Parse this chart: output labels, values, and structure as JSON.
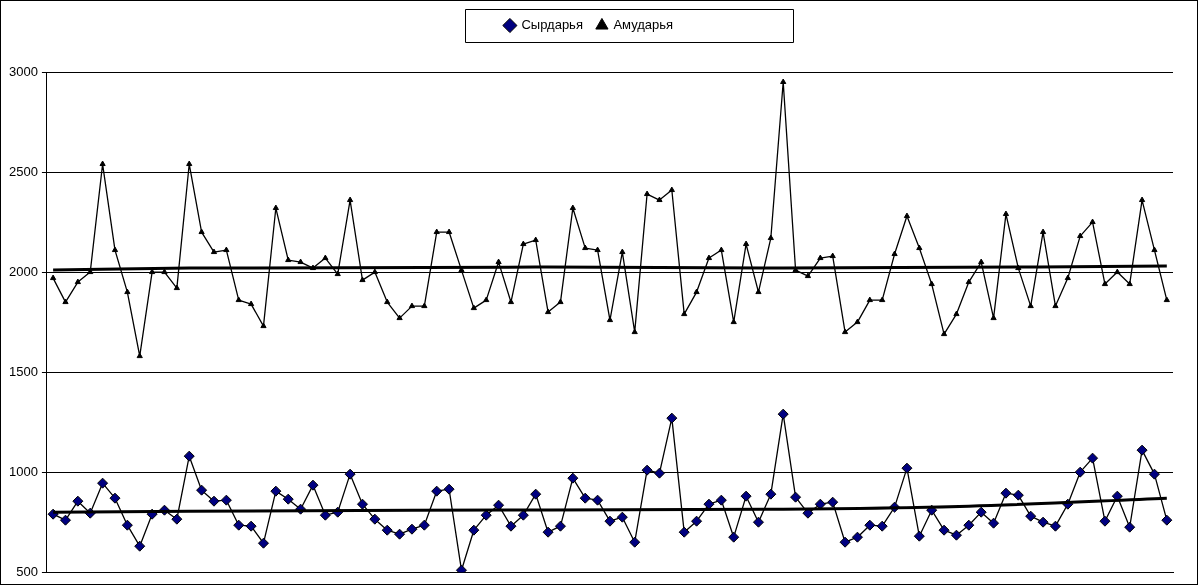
{
  "chart_data": {
    "type": "line",
    "categories": [
      null,
      null,
      null,
      null,
      null,
      null,
      null,
      null,
      null,
      null,
      null,
      null,
      null,
      null,
      null,
      null,
      null,
      null,
      null,
      null,
      null,
      null,
      null,
      null,
      null,
      null,
      null,
      null,
      null,
      null,
      null,
      null,
      null,
      null,
      null,
      null,
      null,
      null,
      null,
      null,
      null,
      null,
      null,
      null,
      null,
      null,
      null,
      null,
      null,
      null,
      null,
      null,
      null,
      null,
      null,
      null,
      null,
      null,
      null,
      null,
      null,
      null,
      null,
      null,
      null,
      null,
      null,
      null,
      null,
      null,
      null,
      null,
      null,
      null,
      null,
      null,
      null,
      null,
      null,
      null,
      null,
      null,
      null,
      null,
      null,
      null,
      null,
      null,
      null,
      null,
      null
    ],
    "ylim": [
      500,
      3000
    ],
    "yticks": [
      500,
      1000,
      1500,
      2000,
      2500,
      3000
    ],
    "grid": "y",
    "legend": "top",
    "tick_labels": "y",
    "line_style": "solid",
    "series": [
      {
        "name": "Сырдарья",
        "color": "#000080",
        "marker": "diamond",
        "values": [
          790,
          760,
          855,
          795,
          945,
          870,
          735,
          630,
          790,
          810,
          765,
          1080,
          910,
          855,
          860,
          735,
          730,
          645,
          905,
          865,
          815,
          935,
          785,
          800,
          990,
          840,
          765,
          710,
          690,
          715,
          735,
          905,
          915,
          510,
          710,
          785,
          835,
          730,
          785,
          890,
          700,
          730,
          970,
          870,
          860,
          755,
          775,
          650,
          1010,
          995,
          1270,
          700,
          755,
          840,
          860,
          675,
          880,
          750,
          890,
          1290,
          875,
          795,
          840,
          850,
          650,
          675,
          735,
          730,
          825,
          1020,
          680,
          810,
          710,
          685,
          735,
          800,
          745,
          895,
          885,
          780,
          750,
          730,
          840,
          1000,
          1070,
          755,
          880,
          725,
          1110,
          990,
          760
        ]
      },
      {
        "name": "Амударья",
        "color": "#000000",
        "marker": "triangle",
        "values": [
          1970,
          1850,
          1950,
          2000,
          2540,
          2110,
          1900,
          1580,
          2000,
          2000,
          1920,
          2540,
          2200,
          2100,
          2110,
          1860,
          1840,
          1730,
          2320,
          2060,
          2050,
          2020,
          2070,
          1990,
          2360,
          1960,
          2000,
          1850,
          1770,
          1830,
          1830,
          2200,
          2200,
          2010,
          1820,
          1860,
          2050,
          1850,
          2140,
          2160,
          1800,
          1850,
          2320,
          2120,
          2110,
          1760,
          2100,
          1700,
          2390,
          2360,
          2410,
          1790,
          1900,
          2070,
          2110,
          1750,
          2140,
          1900,
          2170,
          2950,
          2010,
          1980,
          2070,
          2080,
          1700,
          1750,
          1860,
          1860,
          2090,
          2280,
          2120,
          1940,
          1690,
          1790,
          1950,
          2050,
          1770,
          2290,
          2020,
          1830,
          2200,
          1830,
          1970,
          2180,
          2250,
          1940,
          2000,
          1940,
          2360,
          2110,
          1860
        ]
      },
      {
        "type": "line",
        "color": "#000000",
        "marker": "none",
        "values": [
          800,
          null,
          null,
          null,
          null,
          null,
          null,
          null,
          null,
          null,
          null,
          null,
          null,
          null,
          null,
          null,
          null,
          null,
          null,
          null,
          null,
          null,
          null,
          null,
          null,
          null,
          null,
          null,
          null,
          810,
          null,
          null,
          null,
          null,
          null,
          null,
          null,
          null,
          null,
          null,
          null,
          null,
          null,
          null,
          null,
          null,
          null,
          null,
          null,
          null,
          null,
          null,
          null,
          null,
          null,
          null,
          null,
          null,
          null,
          815,
          null,
          null,
          null,
          null,
          null,
          null,
          null,
          null,
          null,
          null,
          null,
          null,
          null,
          null,
          830,
          null,
          null,
          null,
          null,
          null,
          null,
          null,
          null,
          null,
          null,
          null,
          null,
          null,
          null,
          null,
          870
        ]
      },
      {
        "type": "line",
        "color": "#000000",
        "marker": "none",
        "values": [
          2010,
          null,
          null,
          null,
          null,
          null,
          null,
          null,
          null,
          null,
          null,
          2020,
          null,
          null,
          null,
          null,
          null,
          null,
          null,
          null,
          null,
          null,
          null,
          null,
          null,
          null,
          null,
          null,
          null,
          null,
          null,
          null,
          null,
          null,
          null,
          null,
          null,
          null,
          null,
          2025,
          null,
          null,
          null,
          null,
          null,
          null,
          null,
          null,
          null,
          null,
          null,
          null,
          null,
          null,
          null,
          null,
          null,
          null,
          null,
          2020,
          null,
          null,
          null,
          null,
          null,
          null,
          null,
          null,
          null,
          null,
          null,
          null,
          null,
          null,
          null,
          null,
          null,
          null,
          null,
          null,
          null,
          null,
          null,
          null,
          null,
          null,
          null,
          null,
          null,
          null,
          2030
        ]
      }
    ]
  }
}
